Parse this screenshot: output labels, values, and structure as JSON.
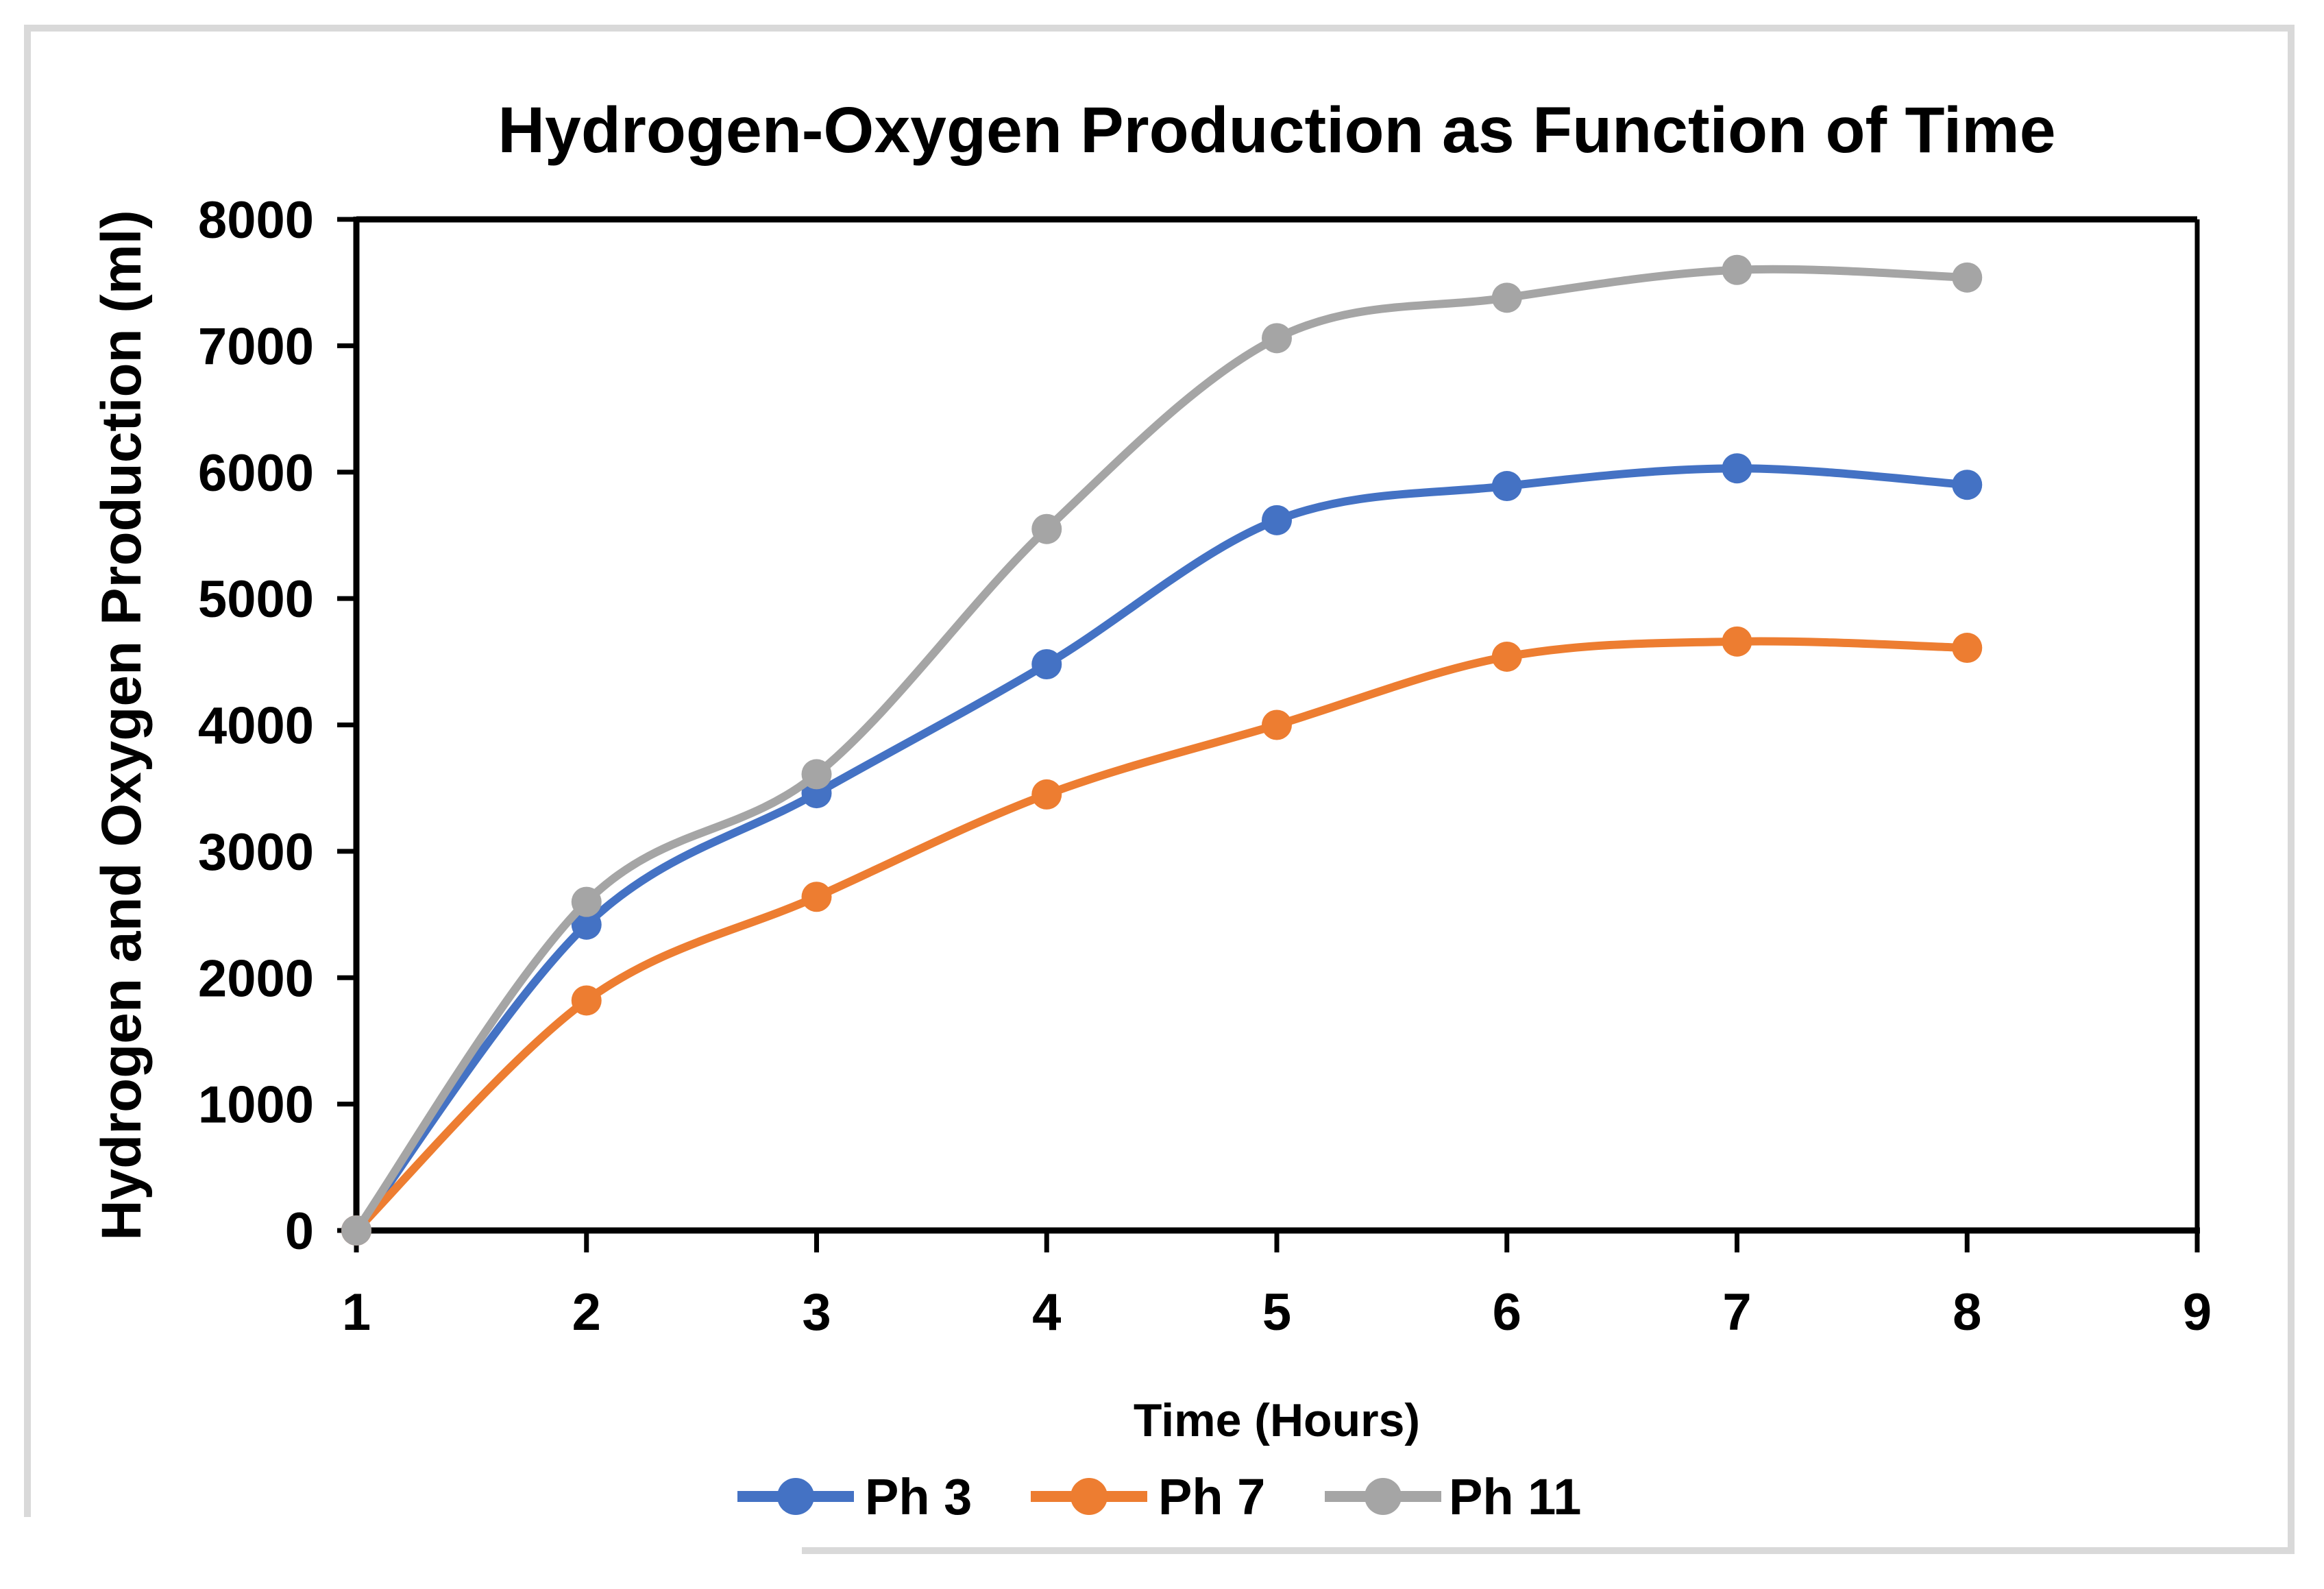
{
  "title": "Hydrogen-Oxygen Production as Function of Time",
  "y_axis": {
    "label": "Hydrogen and Oxygen Production (ml)",
    "ticks": [
      0,
      1000,
      2000,
      3000,
      4000,
      5000,
      6000,
      7000,
      8000
    ],
    "min": 0,
    "max": 8000
  },
  "x_axis": {
    "label": "Time (Hours)",
    "ticks": [
      1,
      2,
      3,
      4,
      5,
      6,
      7,
      8,
      9
    ],
    "min": 1,
    "max": 9
  },
  "colors": {
    "ph3": "#4472C4",
    "ph7": "#ED7D31",
    "ph11": "#A5A5A5",
    "axis": "#000000",
    "outer_frame": "#D9D9D9",
    "background": "#FFFFFF"
  },
  "chart_data": {
    "type": "line",
    "title": "Hydrogen-Oxygen Production as Function of Time",
    "xlabel": "Time (Hours)",
    "ylabel": "Hydrogen and Oxygen Production (ml)",
    "x": [
      1,
      2,
      3,
      4,
      5,
      6,
      7,
      8
    ],
    "series": [
      {
        "name": "Ph 3",
        "color": "#4472C4",
        "values": [
          0,
          2420,
          3460,
          4480,
          5620,
          5890,
          6030,
          5900
        ]
      },
      {
        "name": "Ph 7",
        "color": "#ED7D31",
        "values": [
          0,
          1820,
          2640,
          3450,
          4000,
          4540,
          4660,
          4610
        ]
      },
      {
        "name": "Ph 11",
        "color": "#A5A5A5",
        "values": [
          0,
          2600,
          3610,
          5550,
          7060,
          7380,
          7600,
          7540
        ]
      }
    ],
    "xlim": [
      1,
      9
    ],
    "ylim": [
      0,
      8000
    ],
    "grid": false,
    "smooth": true,
    "marker": "circle",
    "legend_position": "bottom"
  }
}
